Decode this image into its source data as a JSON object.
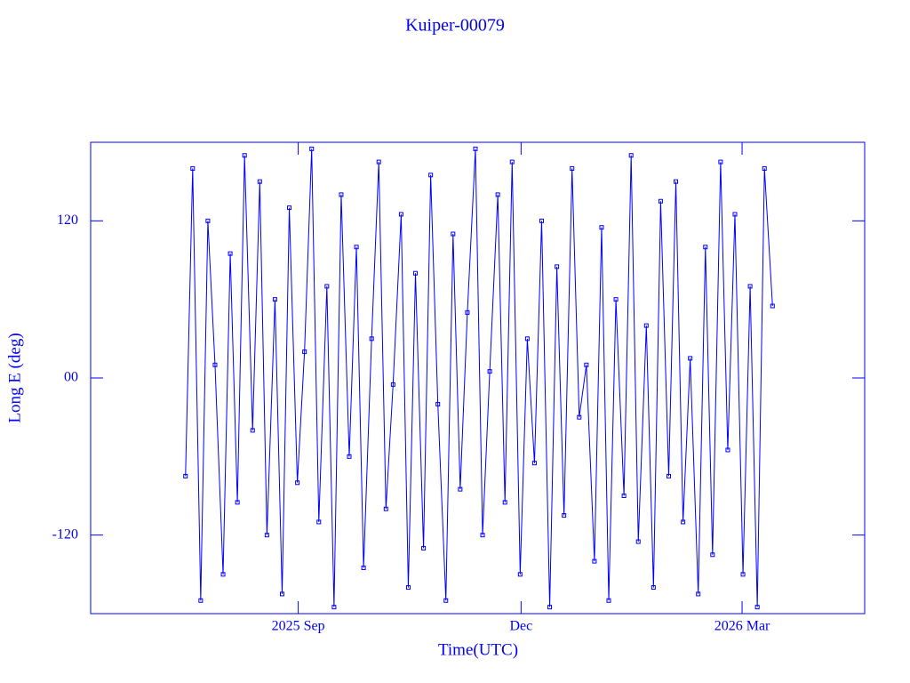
{
  "chart_data": {
    "type": "line",
    "title": "Kuiper-00079",
    "x_label": "Time(UTC)",
    "y_label": "Long E (deg)",
    "x": [
      2025.54,
      2025.548,
      2025.557,
      2025.565,
      2025.573,
      2025.582,
      2025.59,
      2025.598,
      2025.606,
      2025.615,
      2025.623,
      2025.631,
      2025.64,
      2025.648,
      2025.656,
      2025.665,
      2025.673,
      2025.681,
      2025.689,
      2025.698,
      2025.706,
      2025.714,
      2025.723,
      2025.731,
      2025.739,
      2025.748,
      2025.756,
      2025.764,
      2025.772,
      2025.781,
      2025.789,
      2025.797,
      2025.806,
      2025.814,
      2025.822,
      2025.831,
      2025.839,
      2025.847,
      2025.855,
      2025.864,
      2025.872,
      2025.88,
      2025.889,
      2025.897,
      2025.905,
      2025.914,
      2025.922,
      2025.93,
      2025.938,
      2025.947,
      2025.955,
      2025.963,
      2025.972,
      2025.98,
      2025.988,
      2025.997,
      2026.005,
      2026.013,
      2026.021,
      2026.03,
      2026.038,
      2026.046,
      2026.055,
      2026.063,
      2026.071,
      2026.08,
      2026.088,
      2026.096,
      2026.104,
      2026.113,
      2026.121,
      2026.129,
      2026.138,
      2026.146,
      2026.154,
      2026.163,
      2026.171,
      2026.179,
      2026.187,
      2026.196
    ],
    "series": [
      {
        "color": "#0000ff",
        "values": [
          -75,
          160,
          -170,
          120,
          10,
          -150,
          95,
          -95,
          170,
          -40,
          150,
          -120,
          60,
          -165,
          130,
          -80,
          20,
          175,
          -110,
          70,
          -175,
          140,
          -60,
          100,
          -145,
          30,
          165,
          -100,
          -5,
          125,
          -160,
          80,
          -130,
          155,
          -20,
          -170,
          110,
          -85,
          50,
          175,
          -120,
          5,
          140,
          -95,
          165,
          -150,
          30,
          -65,
          120,
          -175,
          85,
          -105,
          160,
          -30,
          10,
          -140,
          115,
          -170,
          60,
          -90,
          170,
          -125,
          40,
          -160,
          135,
          -75,
          150,
          -110,
          15,
          -165,
          100,
          -135,
          165,
          -55,
          125,
          -150,
          70,
          -175,
          160,
          55
        ]
      }
    ],
    "xlim": [
      2025.434,
      2026.299
    ],
    "xticks": [
      {
        "value": 2025.666,
        "label": "2025 Sep"
      },
      {
        "value": 2025.915,
        "label": "Dec"
      },
      {
        "value": 2026.162,
        "label": "2026 Mar"
      }
    ],
    "ylim": [
      -180,
      180
    ],
    "yticks": [
      -120,
      {
        "value": 0,
        "label": "00"
      },
      120
    ]
  }
}
